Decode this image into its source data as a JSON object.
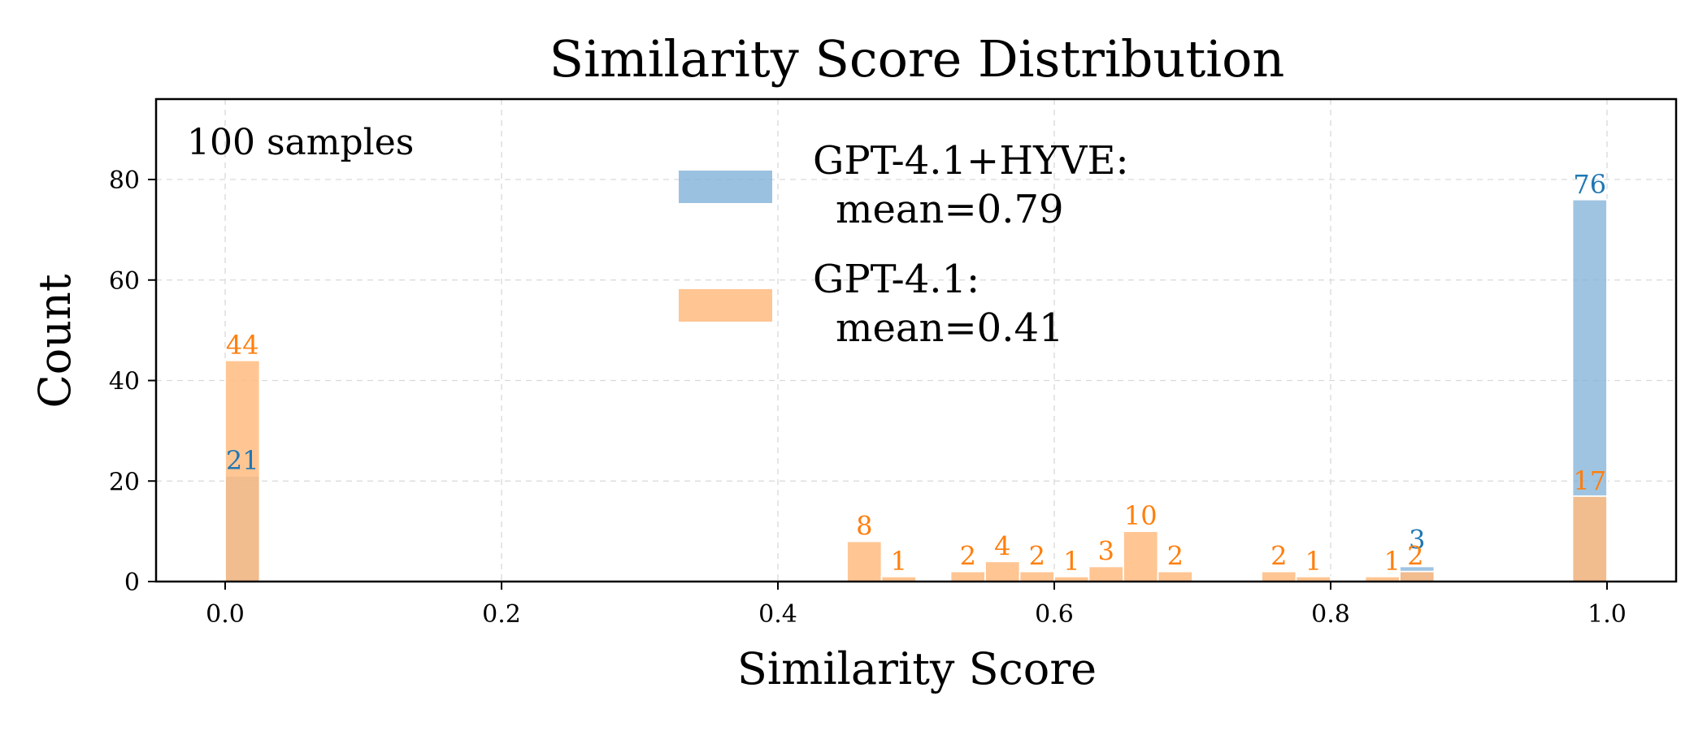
{
  "chart_data": {
    "type": "bar",
    "title": "Similarity Score Distribution",
    "xlabel": "Similarity Score",
    "ylabel": "Count",
    "xlim": [
      -0.05,
      1.05
    ],
    "ylim": [
      0,
      96
    ],
    "x_ticks": [
      0.0,
      0.2,
      0.4,
      0.6,
      0.8,
      1.0
    ],
    "x_tick_labels": [
      "0.0",
      "0.2",
      "0.4",
      "0.6",
      "0.8",
      "1.0"
    ],
    "y_ticks": [
      0,
      20,
      40,
      60,
      80
    ],
    "y_tick_labels": [
      "0",
      "20",
      "40",
      "60",
      "80"
    ],
    "grid": true,
    "bin_width": 0.025,
    "annotation": "100 samples",
    "legend_position": "top-center",
    "series": [
      {
        "name": "GPT-4.1+HYVE:",
        "legend_line2": "mean=0.79",
        "color": "#7fb0d8",
        "label_color": "#1f77b4",
        "bins": [
          {
            "x": 0.0,
            "value": 21
          },
          {
            "x": 0.85,
            "value": 3
          },
          {
            "x": 0.975,
            "value": 76
          }
        ]
      },
      {
        "name": "GPT-4.1:",
        "legend_line2": "mean=0.41",
        "color": "#ffbb7f",
        "label_color": "#ff7f0e",
        "bins": [
          {
            "x": 0.0,
            "value": 44
          },
          {
            "x": 0.45,
            "value": 8
          },
          {
            "x": 0.475,
            "value": 1
          },
          {
            "x": 0.525,
            "value": 2
          },
          {
            "x": 0.55,
            "value": 4
          },
          {
            "x": 0.575,
            "value": 2
          },
          {
            "x": 0.6,
            "value": 1
          },
          {
            "x": 0.625,
            "value": 3
          },
          {
            "x": 0.65,
            "value": 10
          },
          {
            "x": 0.675,
            "value": 2
          },
          {
            "x": 0.75,
            "value": 2
          },
          {
            "x": 0.775,
            "value": 1
          },
          {
            "x": 0.825,
            "value": 1
          },
          {
            "x": 0.85,
            "value": 2
          },
          {
            "x": 0.975,
            "value": 17
          }
        ]
      }
    ]
  }
}
